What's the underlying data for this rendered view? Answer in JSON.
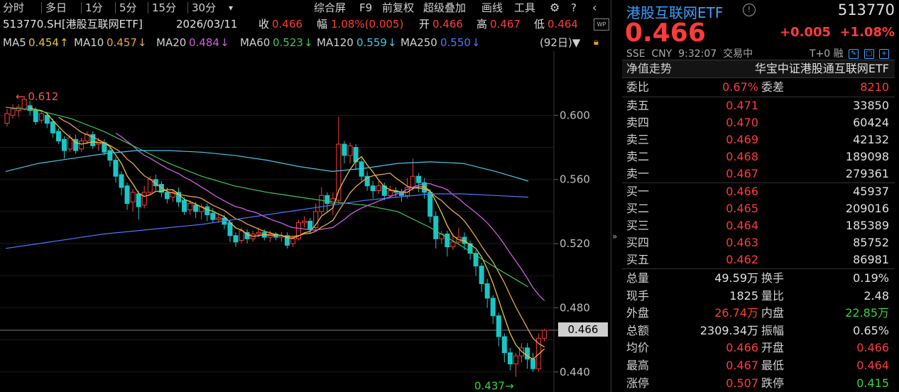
{
  "toolbar": {
    "periods": [
      "分时",
      "多日",
      "1分",
      "5分",
      "15分",
      "30分"
    ],
    "dropdown_glyph": "▾",
    "tools": [
      "综合屏",
      "F9",
      "前复权",
      "超级叠加",
      "画线",
      "工具"
    ],
    "icons": [
      "gear-icon",
      "help-icon",
      "back-icon"
    ]
  },
  "info": {
    "code_name": "513770.SH[港股互联网ETF]",
    "date": "2026/03/11",
    "close_label": "收",
    "close_value": "0.466",
    "amp_label": "幅",
    "amp_value": "1.08%(0.005)",
    "open_label": "开",
    "open_value": "0.466",
    "high_label": "高",
    "high_value": "0.467",
    "low_label": "低",
    "low_value": "0.464"
  },
  "ma": {
    "items": [
      {
        "label": "MA5",
        "value": "0.454",
        "arrow": "↑",
        "color": "#e6c23a"
      },
      {
        "label": "MA10",
        "value": "0.457",
        "arrow": "↓",
        "color": "#e6a64a"
      },
      {
        "label": "MA20",
        "value": "0.484",
        "arrow": "↓",
        "color": "#d15be0"
      },
      {
        "label": "MA60",
        "value": "0.523",
        "arrow": "↓",
        "color": "#3ec95a"
      },
      {
        "label": "MA120",
        "value": "0.559",
        "arrow": "↓",
        "color": "#45c8e8"
      },
      {
        "label": "MA250",
        "value": "0.550",
        "arrow": "↓",
        "color": "#4a78ff"
      }
    ],
    "range_label": "(92日)▼"
  },
  "chart": {
    "y_ticks": [
      "0.600",
      "0.560",
      "0.520",
      "0.480",
      "0.440"
    ],
    "high_marker": "0.612",
    "low_marker": "0.437",
    "last_price": "0.466"
  },
  "panel": {
    "title": "港股互联网ETF",
    "code": "513770",
    "price": "0.466",
    "change": "+0.005",
    "change_pct": "+1.08%",
    "market": "SSE",
    "currency": "CNY",
    "time": "9:32:07",
    "status": "交易中",
    "t_plus": "T+0",
    "margin": "融",
    "nav_label": "净值走势",
    "fund_name": "华宝中证港股通互联网ETF",
    "weibi_label": "委比",
    "weibi_value": "0.67%",
    "weicha_label": "委差",
    "weicha_value": "8210",
    "asks": [
      {
        "label": "卖五",
        "price": "0.471",
        "vol": "33850"
      },
      {
        "label": "卖四",
        "price": "0.470",
        "vol": "60424"
      },
      {
        "label": "卖三",
        "price": "0.469",
        "vol": "42132"
      },
      {
        "label": "卖二",
        "price": "0.468",
        "vol": "189098"
      },
      {
        "label": "卖一",
        "price": "0.467",
        "vol": "279361"
      }
    ],
    "bids": [
      {
        "label": "买一",
        "price": "0.466",
        "vol": "45937"
      },
      {
        "label": "买二",
        "price": "0.465",
        "vol": "209016"
      },
      {
        "label": "买三",
        "price": "0.464",
        "vol": "185389"
      },
      {
        "label": "买四",
        "price": "0.463",
        "vol": "85752"
      },
      {
        "label": "买五",
        "price": "0.462",
        "vol": "86981"
      }
    ],
    "stats": [
      {
        "l1": "总量",
        "v1": "49.59万",
        "c1": "white",
        "l2": "换手",
        "v2": "0.19%",
        "c2": "white"
      },
      {
        "l1": "现手",
        "v1": "1825",
        "c1": "white",
        "l2": "量比",
        "v2": "2.48",
        "c2": "white"
      },
      {
        "l1": "外盘",
        "v1": "26.74万",
        "c1": "red",
        "l2": "内盘",
        "v2": "22.85万",
        "c2": "green"
      },
      {
        "l1": "总额",
        "v1": "2309.34万",
        "c1": "white",
        "l2": "振幅",
        "v2": "0.65%",
        "c2": "white"
      },
      {
        "l1": "均价",
        "v1": "0.466",
        "c1": "red",
        "l2": "开盘",
        "v2": "0.466",
        "c2": "red"
      },
      {
        "l1": "最高",
        "v1": "0.467",
        "c1": "red",
        "l2": "最低",
        "v2": "0.464",
        "c2": "red"
      },
      {
        "l1": "涨停",
        "v1": "0.507",
        "c1": "red",
        "l2": "跌停",
        "v2": "0.415",
        "c2": "green"
      }
    ]
  },
  "colors": {
    "up": "#ff3b3b",
    "down": "#19c6c6",
    "grid": "#1e1e1e"
  }
}
